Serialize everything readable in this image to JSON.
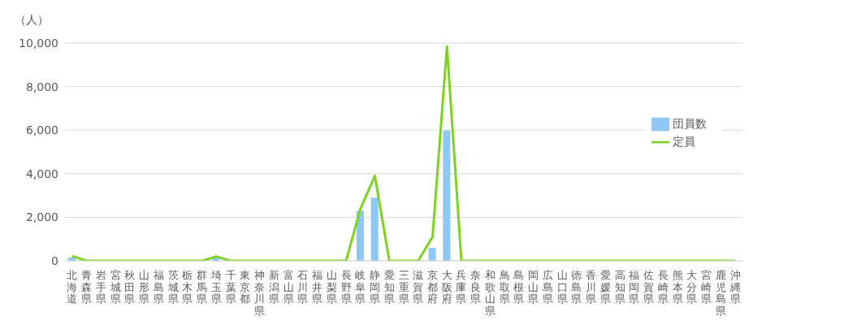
{
  "chart_data": {
    "type": "bar",
    "ylabel": "（人）",
    "categories": [
      "北海道",
      "青森県",
      "岩手県",
      "宮城県",
      "秋田県",
      "山形県",
      "福島県",
      "茨城県",
      "栃木県",
      "群馬県",
      "埼玉県",
      "千葉県",
      "東京都",
      "神奈川県",
      "新潟県",
      "富山県",
      "石川県",
      "福井県",
      "山梨県",
      "長野県",
      "岐阜県",
      "静岡県",
      "愛知県",
      "三重県",
      "滋賀県",
      "京都府",
      "大阪府",
      "兵庫県",
      "奈良県",
      "和歌山県",
      "鳥取県",
      "島根県",
      "岡山県",
      "広島県",
      "山口県",
      "徳島県",
      "香川県",
      "愛媛県",
      "高知県",
      "福岡県",
      "佐賀県",
      "長崎県",
      "熊本県",
      "大分県",
      "宮崎県",
      "鹿児島県",
      "沖縄県"
    ],
    "series": [
      {
        "name": "団員数",
        "color": "#8fc8f4",
        "values": [
          150,
          0,
          0,
          0,
          0,
          0,
          0,
          0,
          0,
          0,
          150,
          0,
          0,
          0,
          0,
          0,
          0,
          0,
          0,
          0,
          2300,
          2900,
          0,
          0,
          0,
          600,
          6000,
          0,
          0,
          0,
          0,
          0,
          0,
          0,
          0,
          0,
          0,
          0,
          0,
          0,
          0,
          0,
          0,
          0,
          0,
          0,
          0
        ]
      },
      {
        "name": "定員",
        "type": "line",
        "color": "#7ed321",
        "values": [
          220,
          0,
          0,
          0,
          0,
          0,
          0,
          0,
          0,
          0,
          200,
          0,
          0,
          0,
          0,
          0,
          0,
          0,
          0,
          0,
          2400,
          3900,
          0,
          0,
          0,
          1100,
          9850,
          0,
          0,
          0,
          0,
          0,
          0,
          0,
          0,
          0,
          0,
          0,
          0,
          0,
          0,
          0,
          0,
          0,
          0,
          0,
          0
        ]
      }
    ],
    "ylim": [
      0,
      10000
    ],
    "yticks": [
      {
        "value": 0,
        "label": "0"
      },
      {
        "value": 2000,
        "label": "2,000"
      },
      {
        "value": 4000,
        "label": "4,000"
      },
      {
        "value": 6000,
        "label": "6,000"
      },
      {
        "value": 8000,
        "label": "8,000"
      },
      {
        "value": 10000,
        "label": "10,000"
      }
    ],
    "grid": "y",
    "legend": "right",
    "marker": "none",
    "line_style": "solid"
  }
}
